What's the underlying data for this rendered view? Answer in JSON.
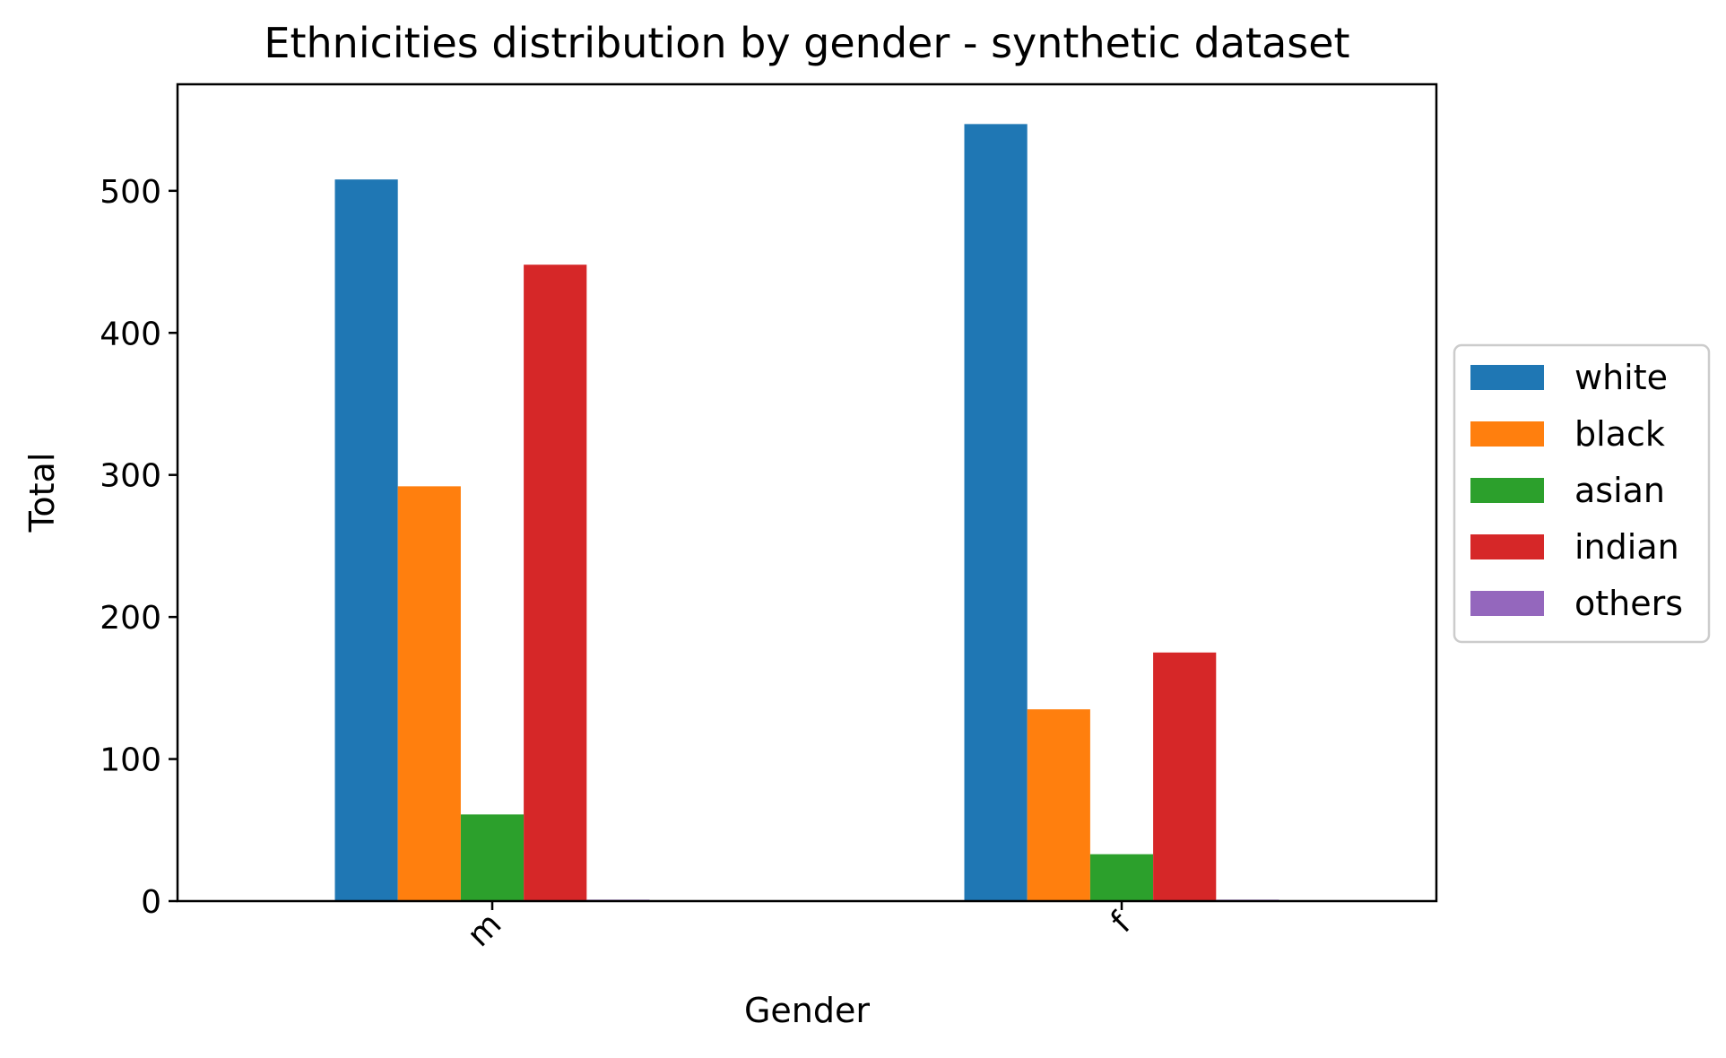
{
  "chart_data": {
    "type": "bar",
    "title": "Ethnicities distribution by gender - synthetic dataset",
    "xlabel": "Gender",
    "ylabel": "Total",
    "categories": [
      "m",
      "f"
    ],
    "ylim": [
      0,
      575
    ],
    "yticks": [
      0,
      100,
      200,
      300,
      400,
      500
    ],
    "grid": false,
    "legend_position": "center-right-outside",
    "series": [
      {
        "name": "white",
        "color": "#1f77b4",
        "values": [
          508,
          547
        ]
      },
      {
        "name": "black",
        "color": "#ff7f0e",
        "values": [
          292,
          135
        ]
      },
      {
        "name": "asian",
        "color": "#2ca02c",
        "values": [
          61,
          33
        ]
      },
      {
        "name": "indian",
        "color": "#d62728",
        "values": [
          448,
          175
        ]
      },
      {
        "name": "others",
        "color": "#9467bd",
        "values": [
          1,
          1
        ]
      }
    ]
  }
}
